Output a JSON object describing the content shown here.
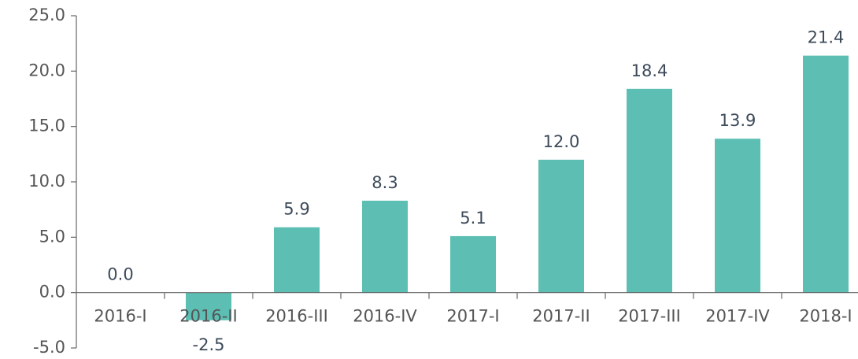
{
  "chart_data": {
    "type": "bar",
    "categories": [
      "2016-I",
      "2016-II",
      "2016-III",
      "2016-IV",
      "2017-I",
      "2017-II",
      "2017-III",
      "2017-IV",
      "2018-I"
    ],
    "values": [
      0,
      -2.5,
      5.9,
      8.3,
      5.1,
      12,
      18.4,
      13.9,
      21.4
    ],
    "value_labels": [
      "0.0",
      "-2.5",
      "5.9",
      "8.3",
      "5.1",
      "12.0",
      "18.4",
      "13.9",
      "21.4"
    ],
    "color": "#5dbfb4",
    "ylim": [
      -5,
      25
    ],
    "yticks": [
      {
        "value": -5,
        "label": "-5.0"
      },
      {
        "value": 0,
        "label": "0.0"
      },
      {
        "value": 5,
        "label": "5.0"
      },
      {
        "value": 10,
        "label": "10.0"
      },
      {
        "value": 15,
        "label": "15.0"
      },
      {
        "value": 20,
        "label": "20.0"
      },
      {
        "value": 25,
        "label": "25.0"
      }
    ],
    "grid": false
  }
}
